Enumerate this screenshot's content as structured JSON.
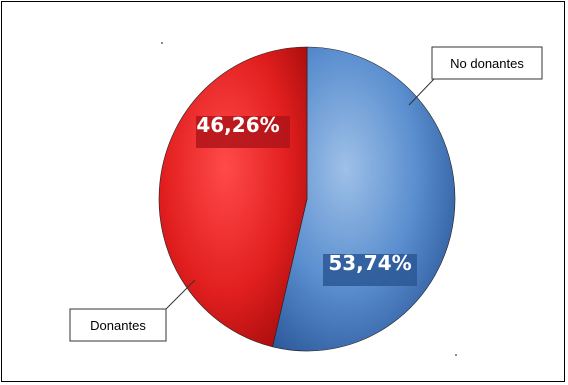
{
  "chart_data": {
    "type": "pie",
    "categories": [
      "No donantes",
      "Donantes"
    ],
    "values": [
      53.74,
      46.26
    ],
    "labels": [
      "53,74%",
      "46,26%"
    ],
    "colors": [
      "#4a7fc1",
      "#e02424"
    ],
    "legend": "callouts"
  }
}
